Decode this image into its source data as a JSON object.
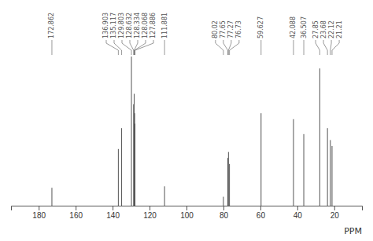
{
  "chart_data": {
    "type": "stem",
    "xlabel": "PPM",
    "x": [
      172.862,
      136.903,
      135.117,
      129.803,
      128.632,
      128.334,
      128.068,
      127.886,
      111.881,
      80.02,
      77.65,
      77.27,
      76.73,
      59.627,
      42.088,
      36.507,
      27.85,
      23.68,
      22.12,
      21.21
    ],
    "values": [
      0.12,
      0.38,
      0.52,
      1.0,
      0.68,
      0.75,
      0.62,
      0.55,
      0.13,
      0.06,
      0.32,
      0.36,
      0.28,
      0.62,
      0.58,
      0.48,
      0.92,
      0.52,
      0.44,
      0.4
    ],
    "annotations": [
      "172.862",
      "136.903",
      "135.117",
      "129.803",
      "128.632",
      "128.334",
      "128.068",
      "127.886",
      "111.881",
      "80.02",
      "77.65",
      "77.27",
      "76.73",
      "59.627",
      "42.088",
      "36.507",
      "27.85",
      "23.68",
      "22.12",
      "21.21"
    ],
    "xlim": [
      195,
      5
    ],
    "ylim": [
      0,
      1.0
    ],
    "xticks": [
      180,
      160,
      140,
      120,
      100,
      80,
      60,
      40,
      20
    ],
    "tick_labels": "x",
    "color": "#555555"
  }
}
